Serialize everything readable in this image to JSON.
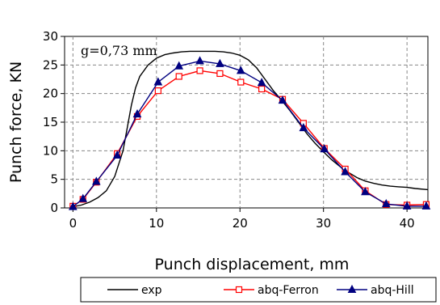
{
  "chart_data": {
    "type": "line",
    "title": "",
    "xlabel": "Punch displacement, mm",
    "ylabel": "Punch force, KN",
    "annotation": "g=0,73 mm",
    "xlim": [
      -1,
      42.5
    ],
    "ylim": [
      0,
      30
    ],
    "x_ticks": [
      0,
      10,
      20,
      30,
      40
    ],
    "y_ticks": [
      0,
      5,
      10,
      15,
      20,
      25,
      30
    ],
    "grid": true,
    "legend_position": "bottom",
    "series": [
      {
        "name": "exp",
        "color": "#000000",
        "marker": "none",
        "x": [
          0,
          1,
          2,
          3,
          4,
          5,
          6,
          6.5,
          7,
          7.5,
          8,
          9,
          10,
          11,
          12,
          13,
          14,
          15,
          16,
          17,
          18,
          19,
          20,
          21,
          22,
          23,
          24,
          25,
          26,
          27,
          28,
          29,
          30,
          31,
          32,
          33,
          34,
          35,
          36,
          37,
          38,
          39,
          40,
          41,
          42.5
        ],
        "y": [
          0.2,
          0.5,
          1,
          1.8,
          3,
          5.5,
          10,
          14,
          18,
          21,
          23,
          25,
          26.2,
          26.8,
          27.1,
          27.3,
          27.4,
          27.4,
          27.4,
          27.4,
          27.3,
          27.1,
          26.7,
          25.9,
          24.5,
          22.5,
          20.5,
          18.8,
          17,
          15,
          13,
          11.3,
          9.8,
          8.4,
          7.2,
          6.2,
          5.3,
          4.7,
          4.3,
          4,
          3.8,
          3.7,
          3.6,
          3.4,
          3.2
        ]
      },
      {
        "name": "abq-Ferron",
        "color": "#ff0000",
        "marker": "square",
        "x": [
          0,
          1.2,
          2.8,
          5.3,
          7.7,
          10.2,
          12.7,
          15.2,
          17.6,
          20.1,
          22.6,
          25.1,
          27.6,
          30.1,
          32.6,
          35.0,
          37.5,
          40.0,
          42.3
        ],
        "y": [
          0.3,
          1.5,
          4.5,
          9.5,
          16.0,
          20.5,
          23.0,
          24.0,
          23.5,
          22.0,
          20.8,
          19.0,
          14.8,
          10.4,
          6.8,
          3.0,
          0.6,
          0.5,
          0.6
        ]
      },
      {
        "name": "abq-Hill",
        "color": "#000080",
        "marker": "triangle",
        "x": [
          0,
          1.2,
          2.8,
          5.3,
          7.7,
          10.2,
          12.7,
          15.2,
          17.6,
          20.1,
          22.6,
          25.1,
          27.6,
          30.1,
          32.6,
          35.0,
          37.5,
          40.0,
          42.3
        ],
        "y": [
          0.2,
          1.6,
          4.6,
          9.2,
          16.4,
          22.0,
          24.8,
          25.7,
          25.2,
          24.0,
          21.9,
          18.8,
          14.0,
          10.3,
          6.3,
          2.8,
          0.7,
          0.3,
          0.3
        ]
      }
    ]
  }
}
